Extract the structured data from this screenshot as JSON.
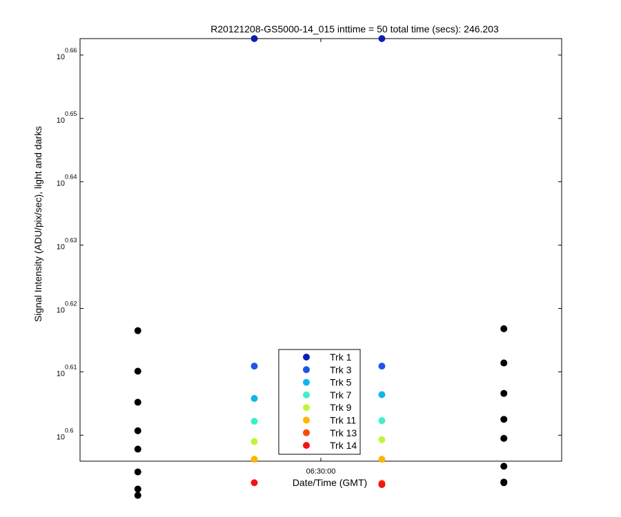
{
  "chart_data": {
    "type": "scatter",
    "title": "R20121208-GS5000-14_015 inttime = 50 total time (secs): 246.203",
    "xlabel": "Date/Time (GMT)",
    "ylabel": "Signal Intensity (ADU/pix/sec), light and darks",
    "x_tick_labels": [
      "06:30:00"
    ],
    "x_tick_values": [
      "06:30:00"
    ],
    "x_range": [
      "06:28:54",
      "06:31:06"
    ],
    "y_scale": "log",
    "y_tick_base": "10",
    "y_tick_exponents": [
      "0.66",
      "0.65",
      "0.64",
      "0.63",
      "0.62",
      "0.61",
      "0.6"
    ],
    "y_tick_values": [
      0.66,
      0.65,
      0.64,
      0.63,
      0.62,
      0.61,
      0.6
    ],
    "y_exponent_range": [
      0.5959,
      0.6626
    ],
    "grid": false,
    "legend_placement": "bottom-center",
    "series": [
      {
        "name": "Trk 1",
        "color": "#0a1eb4",
        "x": [
          "06:29:36",
          "06:30:22"
        ],
        "y_exponent": [
          0.6626,
          0.6626
        ]
      },
      {
        "name": "Trk 3",
        "color": "#1f55e6",
        "x": [
          "06:29:36",
          "06:30:22"
        ],
        "y_exponent": [
          0.6109,
          0.6109
        ]
      },
      {
        "name": "Trk 5",
        "color": "#12b4ec",
        "x": [
          "06:29:36",
          "06:30:22"
        ],
        "y_exponent": [
          0.6058,
          0.6064
        ]
      },
      {
        "name": "Trk 7",
        "color": "#3ef0c8",
        "x": [
          "06:29:36",
          "06:30:22"
        ],
        "y_exponent": [
          0.6022,
          0.6023
        ]
      },
      {
        "name": "Trk 9",
        "color": "#c2f53a",
        "x": [
          "06:29:36",
          "06:30:22"
        ],
        "y_exponent": [
          0.599,
          0.5993
        ]
      },
      {
        "name": "Trk 11",
        "color": "#ffb400",
        "x": [
          "06:29:36",
          "06:30:22"
        ],
        "y_exponent": [
          0.5962,
          0.5962
        ]
      },
      {
        "name": "Trk 13",
        "color": "#f54b0a",
        "x": [
          "06:30:22"
        ],
        "y_exponent": [
          0.5924
        ]
      },
      {
        "name": "Trk 14",
        "color": "#f01414",
        "x": [
          "06:29:36",
          "06:30:22"
        ],
        "y_exponent": [
          0.5925,
          0.5922
        ]
      }
    ],
    "dark_series": {
      "color": "#000000",
      "x": [
        "06:28:54",
        "06:28:54",
        "06:28:54",
        "06:28:54",
        "06:28:54",
        "06:28:54",
        "06:28:54",
        "06:28:54",
        "06:31:06",
        "06:31:06",
        "06:31:06",
        "06:31:06",
        "06:31:06",
        "06:31:06",
        "06:31:06",
        "06:31:06"
      ],
      "y_exponent": [
        0.6165,
        0.6101,
        0.6052,
        0.6007,
        0.5978,
        0.5942,
        0.5915,
        0.5905,
        0.6168,
        0.6114,
        0.6066,
        0.6025,
        0.5995,
        0.5951,
        0.5926,
        0.5925
      ]
    }
  }
}
